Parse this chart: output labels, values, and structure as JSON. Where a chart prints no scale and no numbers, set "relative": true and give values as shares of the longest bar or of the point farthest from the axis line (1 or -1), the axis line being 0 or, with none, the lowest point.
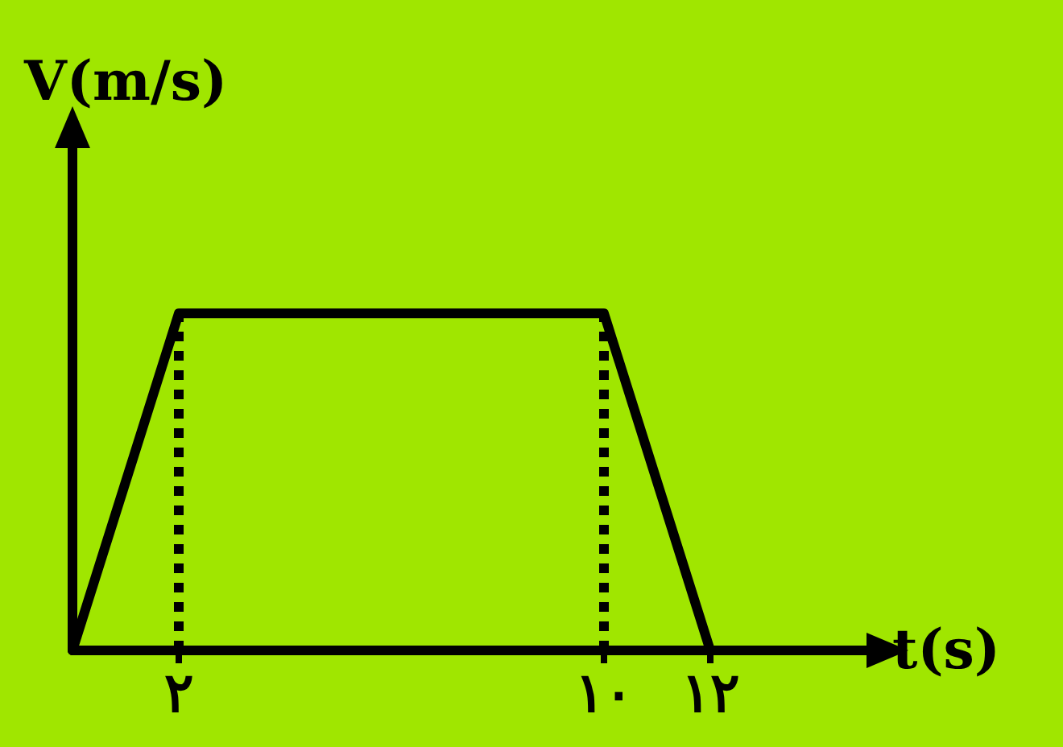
{
  "chart_data": {
    "type": "line",
    "xlabel": "t(s)",
    "ylabel": "V(m/s)",
    "relative": true,
    "x": [
      0,
      2,
      10,
      12
    ],
    "series": [
      {
        "color": "#000000",
        "values": [
          0,
          1,
          1,
          0
        ]
      }
    ],
    "xlim": [
      0,
      15
    ],
    "xticks": [
      {
        "value": 2,
        "label": "٢"
      },
      {
        "value": 10,
        "label": "١٠"
      },
      {
        "value": 12,
        "label": "١٢"
      }
    ],
    "ref_lines": [
      {
        "axis": "x",
        "value": 2,
        "line_style": "dotted",
        "color": "#000000"
      },
      {
        "axis": "x",
        "value": 10,
        "line_style": "dotted",
        "color": "#000000"
      }
    ],
    "grid": false,
    "marker": "none",
    "line_style": "solid",
    "tick_labels": "x"
  }
}
